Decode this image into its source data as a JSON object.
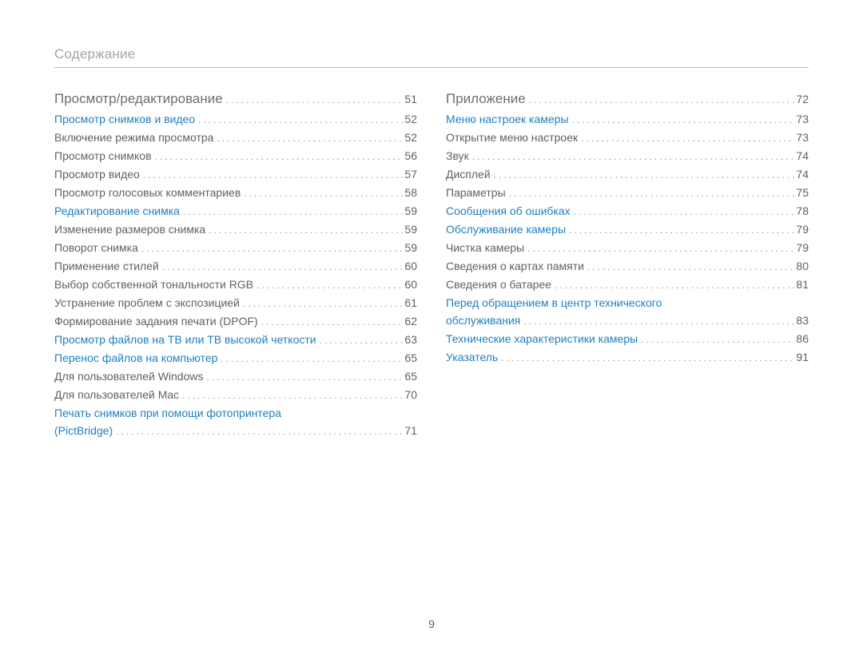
{
  "header": {
    "title": "Содержание"
  },
  "page_number": "9",
  "colors": {
    "link": "#1f7fbf",
    "text": "#5d6265",
    "header": "#9fa5a8",
    "rule": "#b6bdc0",
    "dots": "#8d9295",
    "background": "#ffffff"
  },
  "fonts": {
    "body_size": 14,
    "section_size": 17,
    "header_size": 17,
    "line_height": 22,
    "family": "Arial"
  },
  "left_column": [
    {
      "style": "section",
      "label": "Просмотр/редактирование",
      "page": "51"
    },
    {
      "style": "link",
      "label": "Просмотр снимков и видео",
      "page": "52"
    },
    {
      "style": "plain",
      "label": "Включение режима просмотра",
      "page": "52"
    },
    {
      "style": "plain",
      "label": "Просмотр снимков",
      "page": "56"
    },
    {
      "style": "plain",
      "label": "Просмотр видео",
      "page": "57"
    },
    {
      "style": "plain",
      "label": "Просмотр голосовых комментариев",
      "page": "58"
    },
    {
      "style": "link",
      "label": "Редактирование снимка",
      "page": "59"
    },
    {
      "style": "plain",
      "label": "Изменение размеров снимка",
      "page": "59"
    },
    {
      "style": "plain",
      "label": "Поворот снимка",
      "page": "59"
    },
    {
      "style": "plain",
      "label": "Применение стилей",
      "page": "60"
    },
    {
      "style": "plain",
      "label": "Выбор собственной тональности RGB",
      "page": "60"
    },
    {
      "style": "plain",
      "label": "Устранение проблем с экспозицией",
      "page": "61"
    },
    {
      "style": "plain",
      "label": "Формирование задания печати (DPOF)",
      "page": "62"
    },
    {
      "style": "link",
      "label": "Просмотр файлов на ТВ или ТВ высокой четкости",
      "page": "63"
    },
    {
      "style": "link",
      "label": "Перенос файлов на компьютер",
      "page": "65"
    },
    {
      "style": "plain",
      "label": "Для пользователей Windows",
      "page": "65"
    },
    {
      "style": "plain",
      "label": "Для пользователей Mac",
      "page": "70"
    }
  ],
  "left_multiline": {
    "line1": "Печать снимков при помощи фотопринтера",
    "line2": "(PictBridge)",
    "page": "71"
  },
  "right_column": [
    {
      "style": "section",
      "label": "Приложение",
      "page": "72"
    },
    {
      "style": "link",
      "label": "Меню настроек камеры",
      "page": "73"
    },
    {
      "style": "plain",
      "label": "Открытие меню настроек",
      "page": "73"
    },
    {
      "style": "plain",
      "label": "Звук",
      "page": "74"
    },
    {
      "style": "plain",
      "label": "Дисплей",
      "page": "74"
    },
    {
      "style": "plain",
      "label": "Параметры",
      "page": "75"
    },
    {
      "style": "link",
      "label": "Сообщения об ошибках",
      "page": "78"
    },
    {
      "style": "link",
      "label": "Обслуживание камеры",
      "page": "79"
    },
    {
      "style": "plain",
      "label": "Чистка камеры",
      "page": "79"
    },
    {
      "style": "plain",
      "label": "Сведения о картах памяти",
      "page": "80"
    },
    {
      "style": "plain",
      "label": "Сведения о батарее",
      "page": "81"
    }
  ],
  "right_multiline": {
    "line1": "Перед обращением в центр технического",
    "line2": "обслуживания",
    "page": "83"
  },
  "right_tail": [
    {
      "style": "link",
      "label": "Технические характеристики камеры",
      "page": "86"
    },
    {
      "style": "link",
      "label": "Указатель",
      "page": "91"
    }
  ]
}
